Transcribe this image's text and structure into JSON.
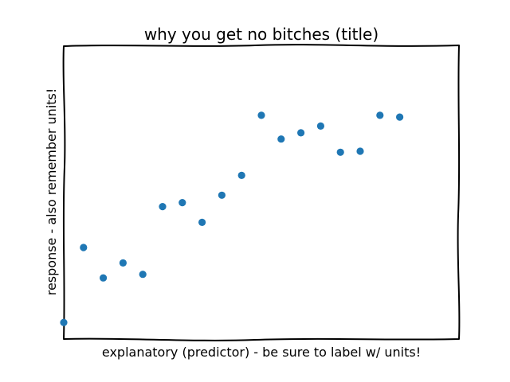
{
  "chart_data": {
    "type": "scatter",
    "title": "why you get no bitches (title)",
    "xlabel": "explanatory (predictor) - be sure to label w/ units!",
    "ylabel": "response - also remember units!",
    "xlim": [
      0,
      20
    ],
    "ylim": [
      -1.2,
      13.5
    ],
    "grid": false,
    "x_ticks_shown": false,
    "y_ticks_shown": false,
    "marker_color": "#1f77b4",
    "frame_color": "#000000",
    "x": [
      0,
      1,
      2,
      3,
      4,
      5,
      6,
      7,
      8,
      9,
      10,
      11,
      12,
      13,
      14,
      15,
      16,
      17
    ],
    "y": [
      -0.37,
      3.38,
      1.86,
      2.61,
      2.04,
      5.43,
      5.63,
      4.64,
      6.0,
      6.99,
      10.0,
      8.81,
      9.12,
      9.46,
      8.15,
      8.2,
      10.0,
      9.91
    ]
  }
}
